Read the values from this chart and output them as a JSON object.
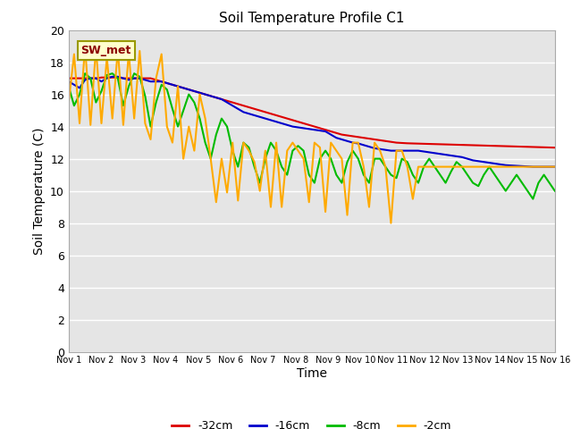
{
  "title": "Soil Temperature Profile C1",
  "xlabel": "Time",
  "ylabel": "Soil Temperature (C)",
  "ylim": [
    0,
    20
  ],
  "yticks": [
    0,
    2,
    4,
    6,
    8,
    10,
    12,
    14,
    16,
    18,
    20
  ],
  "xlim_days": 15,
  "xtick_labels": [
    "Nov 1",
    "Nov 2",
    "Nov 3",
    "Nov 4",
    "Nov 5",
    "Nov 6",
    "Nov 7",
    "Nov 8",
    "Nov 9",
    "Nov 10",
    "Nov 11",
    "Nov 12",
    "Nov 13",
    "Nov 14",
    "Nov 15",
    "Nov 16"
  ],
  "legend_entries": [
    "-32cm",
    "-16cm",
    "-8cm",
    "-2cm"
  ],
  "legend_colors": [
    "#dd0000",
    "#0000cc",
    "#00bb00",
    "#ffaa00"
  ],
  "annotation_text": "SW_met",
  "background_color": "#e5e5e5",
  "grid_color": "#ffffff",
  "depth_32cm": [
    17.0,
    17.0,
    17.0,
    17.0,
    17.0,
    17.0,
    17.05,
    17.05,
    17.05,
    17.05,
    17.0,
    17.0,
    17.0,
    17.0,
    17.0,
    17.0,
    16.9,
    16.8,
    16.7,
    16.6,
    16.5,
    16.4,
    16.3,
    16.2,
    16.1,
    16.0,
    15.9,
    15.8,
    15.7,
    15.6,
    15.5,
    15.4,
    15.3,
    15.2,
    15.1,
    15.0,
    14.9,
    14.8,
    14.7,
    14.6,
    14.5,
    14.4,
    14.3,
    14.2,
    14.1,
    14.0,
    13.9,
    13.8,
    13.7,
    13.6,
    13.5,
    13.45,
    13.4,
    13.35,
    13.3,
    13.25,
    13.2,
    13.15,
    13.1,
    13.05,
    13.0,
    12.98,
    12.96,
    12.95,
    12.94,
    12.93,
    12.92,
    12.91,
    12.9,
    12.89,
    12.88,
    12.87,
    12.86,
    12.85,
    12.84,
    12.83,
    12.82,
    12.81,
    12.8,
    12.79,
    12.78,
    12.77,
    12.76,
    12.75,
    12.74,
    12.73,
    12.72,
    12.71,
    12.7,
    12.69
  ],
  "depth_16cm": [
    16.8,
    16.6,
    16.4,
    16.9,
    17.0,
    17.0,
    16.8,
    17.0,
    17.1,
    17.1,
    17.0,
    16.9,
    17.0,
    17.0,
    16.9,
    16.8,
    16.8,
    16.8,
    16.7,
    16.6,
    16.5,
    16.4,
    16.3,
    16.2,
    16.1,
    16.0,
    15.9,
    15.8,
    15.7,
    15.5,
    15.3,
    15.1,
    14.9,
    14.8,
    14.7,
    14.6,
    14.5,
    14.4,
    14.3,
    14.2,
    14.1,
    14.0,
    13.95,
    13.9,
    13.85,
    13.8,
    13.75,
    13.7,
    13.5,
    13.3,
    13.2,
    13.1,
    13.0,
    12.95,
    12.85,
    12.75,
    12.65,
    12.6,
    12.55,
    12.5,
    12.5,
    12.5,
    12.5,
    12.5,
    12.5,
    12.45,
    12.4,
    12.35,
    12.3,
    12.25,
    12.2,
    12.15,
    12.1,
    12.0,
    11.9,
    11.85,
    11.8,
    11.75,
    11.7,
    11.65,
    11.6,
    11.58,
    11.56,
    11.54,
    11.52,
    11.5,
    11.5,
    11.5,
    11.5,
    11.5
  ],
  "depth_8cm": [
    16.5,
    15.3,
    16.0,
    17.3,
    17.0,
    15.5,
    16.2,
    17.2,
    17.3,
    17.0,
    15.3,
    16.5,
    17.3,
    17.1,
    15.9,
    14.0,
    15.5,
    16.6,
    16.3,
    15.1,
    14.0,
    15.0,
    16.0,
    15.5,
    14.5,
    13.0,
    12.0,
    13.5,
    14.5,
    14.0,
    12.5,
    11.5,
    13.0,
    12.7,
    11.5,
    10.5,
    12.0,
    13.0,
    12.5,
    11.5,
    11.0,
    12.5,
    12.8,
    12.5,
    11.0,
    10.5,
    12.0,
    12.5,
    12.0,
    11.0,
    10.5,
    11.8,
    12.5,
    12.0,
    11.0,
    10.5,
    12.0,
    12.0,
    11.5,
    11.0,
    10.8,
    12.0,
    11.8,
    11.0,
    10.5,
    11.5,
    12.0,
    11.5,
    11.0,
    10.5,
    11.2,
    11.8,
    11.5,
    11.0,
    10.5,
    10.3,
    11.0,
    11.5,
    11.0,
    10.5,
    10.0,
    10.5,
    11.0,
    10.5,
    10.0,
    9.5,
    10.5,
    11.0,
    10.5,
    10.0
  ],
  "depth_2cm": [
    15.5,
    18.5,
    14.2,
    19.0,
    14.1,
    18.9,
    14.2,
    18.3,
    14.5,
    18.8,
    14.1,
    18.6,
    14.5,
    18.7,
    14.2,
    13.2,
    17.0,
    18.5,
    14.0,
    13.0,
    16.5,
    12.0,
    14.0,
    12.5,
    16.0,
    14.5,
    12.0,
    9.3,
    12.0,
    9.9,
    13.0,
    9.4,
    13.0,
    12.5,
    11.8,
    10.0,
    12.5,
    9.0,
    13.0,
    9.0,
    12.5,
    13.0,
    12.5,
    12.0,
    9.3,
    13.0,
    12.7,
    8.7,
    13.0,
    12.5,
    12.0,
    8.5,
    13.0,
    13.0,
    11.5,
    9.0,
    13.0,
    12.5,
    11.5,
    8.0,
    12.5,
    12.5,
    11.5,
    9.5,
    11.5,
    11.5,
    11.5,
    11.5,
    11.5,
    11.5,
    11.5,
    11.5,
    11.5,
    11.5,
    11.5,
    11.5,
    11.5,
    11.5,
    11.5,
    11.5,
    11.5,
    11.5,
    11.5,
    11.5,
    11.5,
    11.5,
    11.5,
    11.5,
    11.5,
    11.5
  ]
}
